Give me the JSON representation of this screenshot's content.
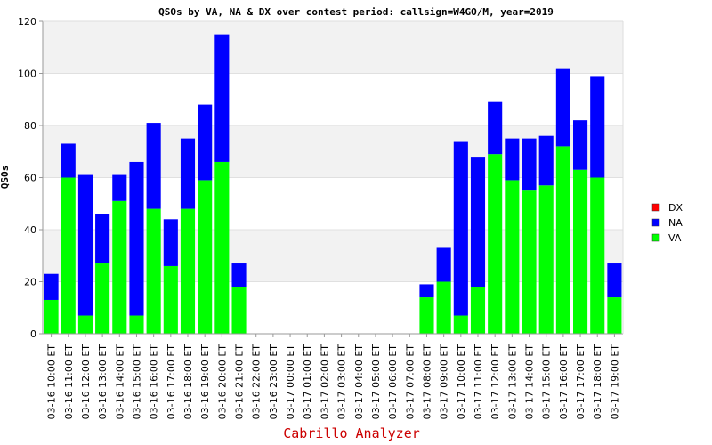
{
  "chart_data": {
    "type": "bar",
    "stacked": true,
    "title": "QSOs by VA, NA & DX over contest period: callsign=W4GO/M, year=2019",
    "ylabel": "QSOs",
    "xlabel": "",
    "footer": "Cabrillo Analyzer",
    "ylim": [
      0,
      120
    ],
    "yticks": [
      0,
      20,
      40,
      60,
      80,
      100,
      120
    ],
    "grid": "horizontal bands",
    "legend_position": "right",
    "categories": [
      "03-16 10:00 ET",
      "03-16 11:00 ET",
      "03-16 12:00 ET",
      "03-16 13:00 ET",
      "03-16 14:00 ET",
      "03-16 15:00 ET",
      "03-16 16:00 ET",
      "03-16 17:00 ET",
      "03-16 18:00 ET",
      "03-16 19:00 ET",
      "03-16 20:00 ET",
      "03-16 21:00 ET",
      "03-16 22:00 ET",
      "03-16 23:00 ET",
      "03-17 00:00 ET",
      "03-17 01:00 ET",
      "03-17 02:00 ET",
      "03-17 03:00 ET",
      "03-17 04:00 ET",
      "03-17 05:00 ET",
      "03-17 06:00 ET",
      "03-17 07:00 ET",
      "03-17 08:00 ET",
      "03-17 09:00 ET",
      "03-17 10:00 ET",
      "03-17 11:00 ET",
      "03-17 12:00 ET",
      "03-17 13:00 ET",
      "03-17 14:00 ET",
      "03-17 15:00 ET",
      "03-17 16:00 ET",
      "03-17 17:00 ET",
      "03-17 18:00 ET",
      "03-17 19:00 ET"
    ],
    "series": [
      {
        "name": "VA",
        "color": "#00ff00",
        "values": [
          13,
          60,
          7,
          27,
          51,
          7,
          48,
          26,
          48,
          59,
          66,
          18,
          0,
          0,
          0,
          0,
          0,
          0,
          0,
          0,
          0,
          0,
          14,
          20,
          7,
          18,
          69,
          59,
          55,
          57,
          72,
          63,
          60,
          14
        ]
      },
      {
        "name": "NA",
        "color": "#0000ff",
        "values": [
          10,
          13,
          54,
          19,
          10,
          59,
          33,
          18,
          27,
          29,
          49,
          9,
          0,
          0,
          0,
          0,
          0,
          0,
          0,
          0,
          0,
          0,
          5,
          13,
          67,
          50,
          20,
          16,
          20,
          19,
          30,
          19,
          39,
          13
        ]
      },
      {
        "name": "DX",
        "color": "#ff0000",
        "values": [
          0,
          0,
          0,
          0,
          0,
          0,
          0,
          0,
          0,
          0,
          0,
          0,
          0,
          0,
          0,
          0,
          0,
          0,
          0,
          0,
          0,
          0,
          0,
          0,
          0,
          0,
          0,
          0,
          0,
          0,
          0,
          0,
          0,
          0
        ]
      }
    ],
    "legend_order": [
      "DX",
      "NA",
      "VA"
    ]
  }
}
